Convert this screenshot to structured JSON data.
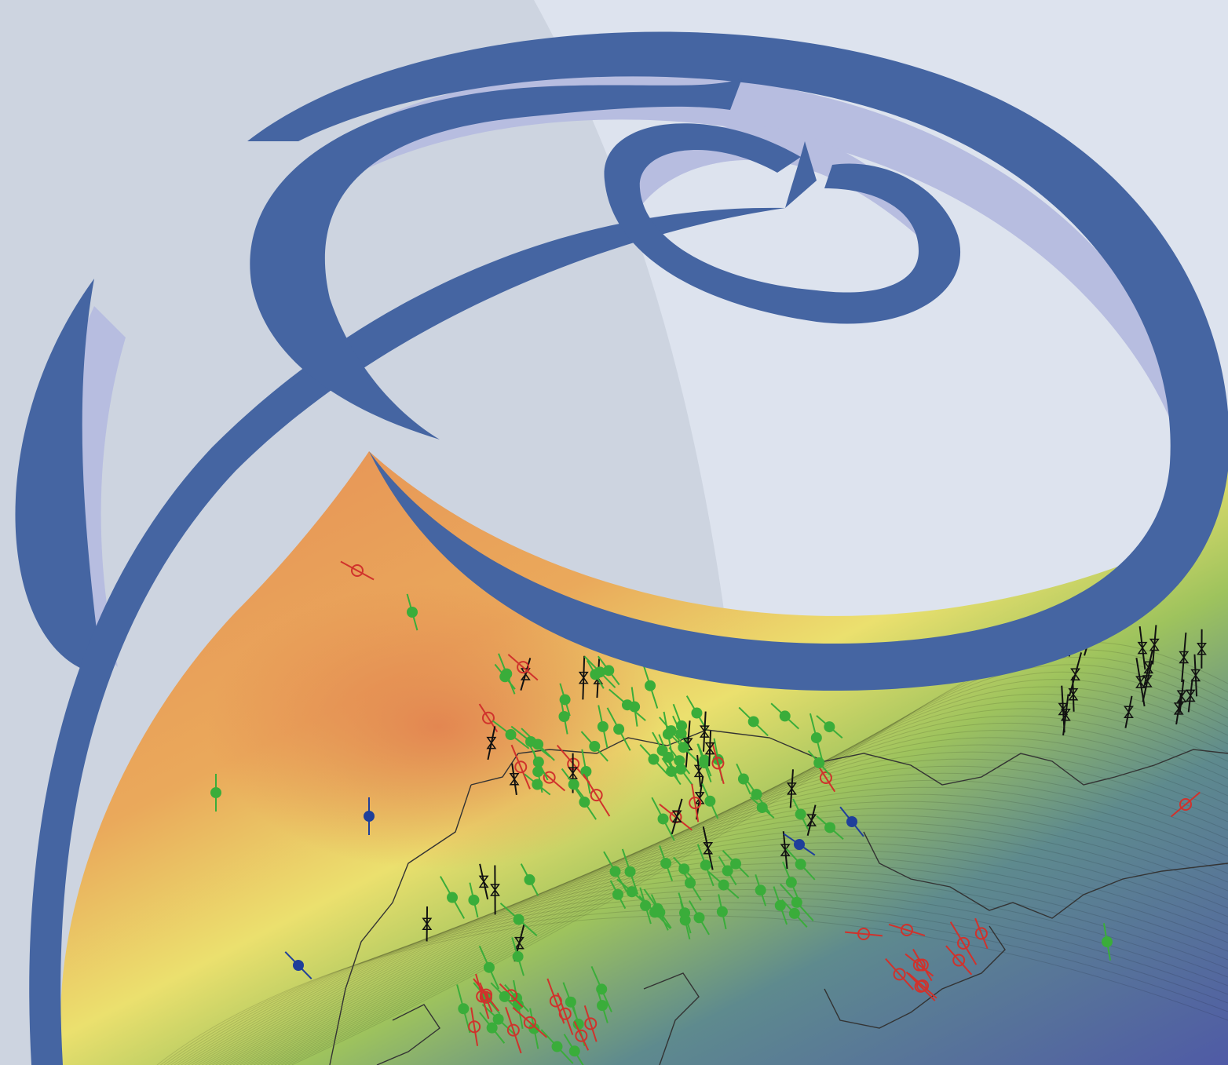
{
  "image": {
    "subject": "logo-over-stress-map",
    "colors": {
      "background_left": "#cdd4e0",
      "background_right": "#dde3ee",
      "logo_blue": "#4565a2",
      "logo_shadow": "#b7bde0",
      "map_warm": "#e58a55",
      "map_orange": "#eaa95b",
      "map_yellow": "#ebe06e",
      "map_green": "#9ec35d",
      "map_teal": "#5e8a8e",
      "map_purple": "#4f5aa6",
      "marker_green": "#3aad3a",
      "marker_red": "#d0322c",
      "marker_black": "#111111",
      "marker_blue": "#1f3f9a",
      "border_line": "#333333"
    },
    "legend_marker_classes": [
      "green-filled-circle",
      "red-open-circle",
      "black-triangle-pair",
      "blue-filled-circle"
    ]
  }
}
